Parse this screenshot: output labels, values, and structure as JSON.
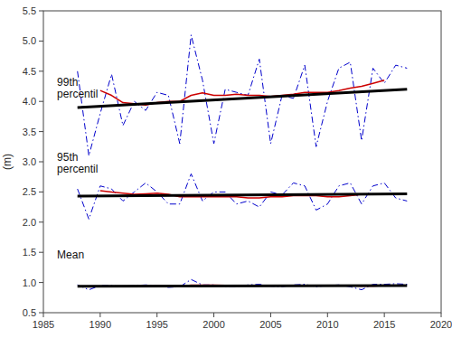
{
  "chart_data": {
    "type": "line",
    "ylabel": "(m)",
    "x": [
      1988,
      1989,
      1990,
      1991,
      1992,
      1993,
      1994,
      1995,
      1996,
      1997,
      1998,
      1999,
      2000,
      2001,
      2002,
      2003,
      2004,
      2005,
      2006,
      2007,
      2008,
      2009,
      2010,
      2011,
      2012,
      2013,
      2014,
      2015,
      2016,
      2017
    ],
    "series": [
      {
        "color": "#0000CC",
        "line_style": "dashdot",
        "values": [
          4.5,
          3.1,
          3.8,
          4.45,
          3.6,
          4.0,
          3.85,
          4.15,
          4.1,
          3.3,
          5.1,
          4.35,
          3.3,
          4.2,
          4.15,
          4.1,
          4.7,
          3.3,
          4.1,
          4.05,
          4.6,
          3.25,
          4.0,
          4.55,
          4.65,
          3.35,
          4.55,
          4.3,
          4.6,
          4.55
        ]
      },
      {
        "color": "#CC0000",
        "line_style": "solid",
        "values": [
          null,
          null,
          4.18,
          4.1,
          3.98,
          3.96,
          3.94,
          3.98,
          4.0,
          4.0,
          4.1,
          4.14,
          4.1,
          4.1,
          4.12,
          4.1,
          4.1,
          4.08,
          4.1,
          4.12,
          4.15,
          4.15,
          4.15,
          4.18,
          4.22,
          4.25,
          4.3,
          4.35,
          null,
          null
        ]
      },
      {
        "color": "#000000",
        "line_style": "solid",
        "x": [
          1988,
          2017
        ],
        "values": [
          3.9,
          4.2
        ]
      },
      {
        "color": "#0000CC",
        "line_style": "dashdot",
        "values": [
          2.55,
          2.05,
          2.6,
          2.55,
          2.35,
          2.5,
          2.65,
          2.5,
          2.3,
          2.3,
          2.8,
          2.35,
          2.5,
          2.5,
          2.3,
          2.35,
          2.25,
          2.5,
          2.45,
          2.65,
          2.6,
          2.2,
          2.3,
          2.6,
          2.65,
          2.3,
          2.6,
          2.65,
          2.4,
          2.35
        ]
      },
      {
        "color": "#CC0000",
        "line_style": "solid",
        "values": [
          null,
          null,
          2.52,
          2.5,
          2.48,
          2.46,
          2.47,
          2.48,
          2.46,
          2.42,
          2.42,
          2.42,
          2.42,
          2.42,
          2.42,
          2.4,
          2.4,
          2.42,
          2.42,
          2.44,
          2.44,
          2.44,
          2.42,
          2.42,
          2.44,
          2.46,
          2.46,
          2.46,
          null,
          null
        ]
      },
      {
        "color": "#000000",
        "line_style": "solid",
        "x": [
          1988,
          2017
        ],
        "values": [
          2.43,
          2.47
        ]
      },
      {
        "color": "#0000CC",
        "line_style": "dashdot",
        "values": [
          0.96,
          0.88,
          0.95,
          0.95,
          0.93,
          0.95,
          0.96,
          0.95,
          0.92,
          0.93,
          1.05,
          0.96,
          0.96,
          0.93,
          0.93,
          0.96,
          0.97,
          0.94,
          0.93,
          0.96,
          0.97,
          0.93,
          0.95,
          0.96,
          0.93,
          0.88,
          0.97,
          0.97,
          0.98,
          0.97
        ]
      },
      {
        "color": "#CC0000",
        "line_style": "solid",
        "values": [
          null,
          null,
          0.934,
          0.934,
          0.932,
          0.934,
          0.938,
          0.944,
          0.942,
          0.938,
          0.956,
          0.956,
          0.958,
          0.954,
          0.948,
          0.948,
          0.952,
          0.952,
          0.95,
          0.952,
          0.954,
          0.95,
          0.948,
          0.95,
          0.948,
          0.942,
          0.94,
          0.948,
          null,
          null
        ]
      },
      {
        "color": "#000000",
        "line_style": "solid",
        "x": [
          1988,
          2017
        ],
        "values": [
          0.938,
          0.948
        ]
      }
    ],
    "annotations": [
      {
        "text": "99th\npercentil",
        "x": 1986.2,
        "y": 4.42
      },
      {
        "text": "95th\npercentil",
        "x": 1986.2,
        "y": 3.18
      },
      {
        "text": "Mean",
        "x": 1986.2,
        "y": 1.57
      }
    ],
    "xlim": [
      1985,
      2020
    ],
    "xticks": [
      1985,
      1990,
      1995,
      2000,
      2005,
      2010,
      2015,
      2020
    ],
    "ylim": [
      0.5,
      5.5
    ],
    "yticks": [
      0.5,
      {
        "value": 1.0,
        "label": "1.0"
      },
      1.5,
      {
        "value": 2.0,
        "label": "2.0"
      },
      2.5,
      {
        "value": 3.0,
        "label": "3.0"
      },
      3.5,
      {
        "value": 4.0,
        "label": "4.0"
      },
      4.5,
      {
        "value": 5.0,
        "label": "5.0"
      },
      5.5
    ],
    "grid": false
  }
}
